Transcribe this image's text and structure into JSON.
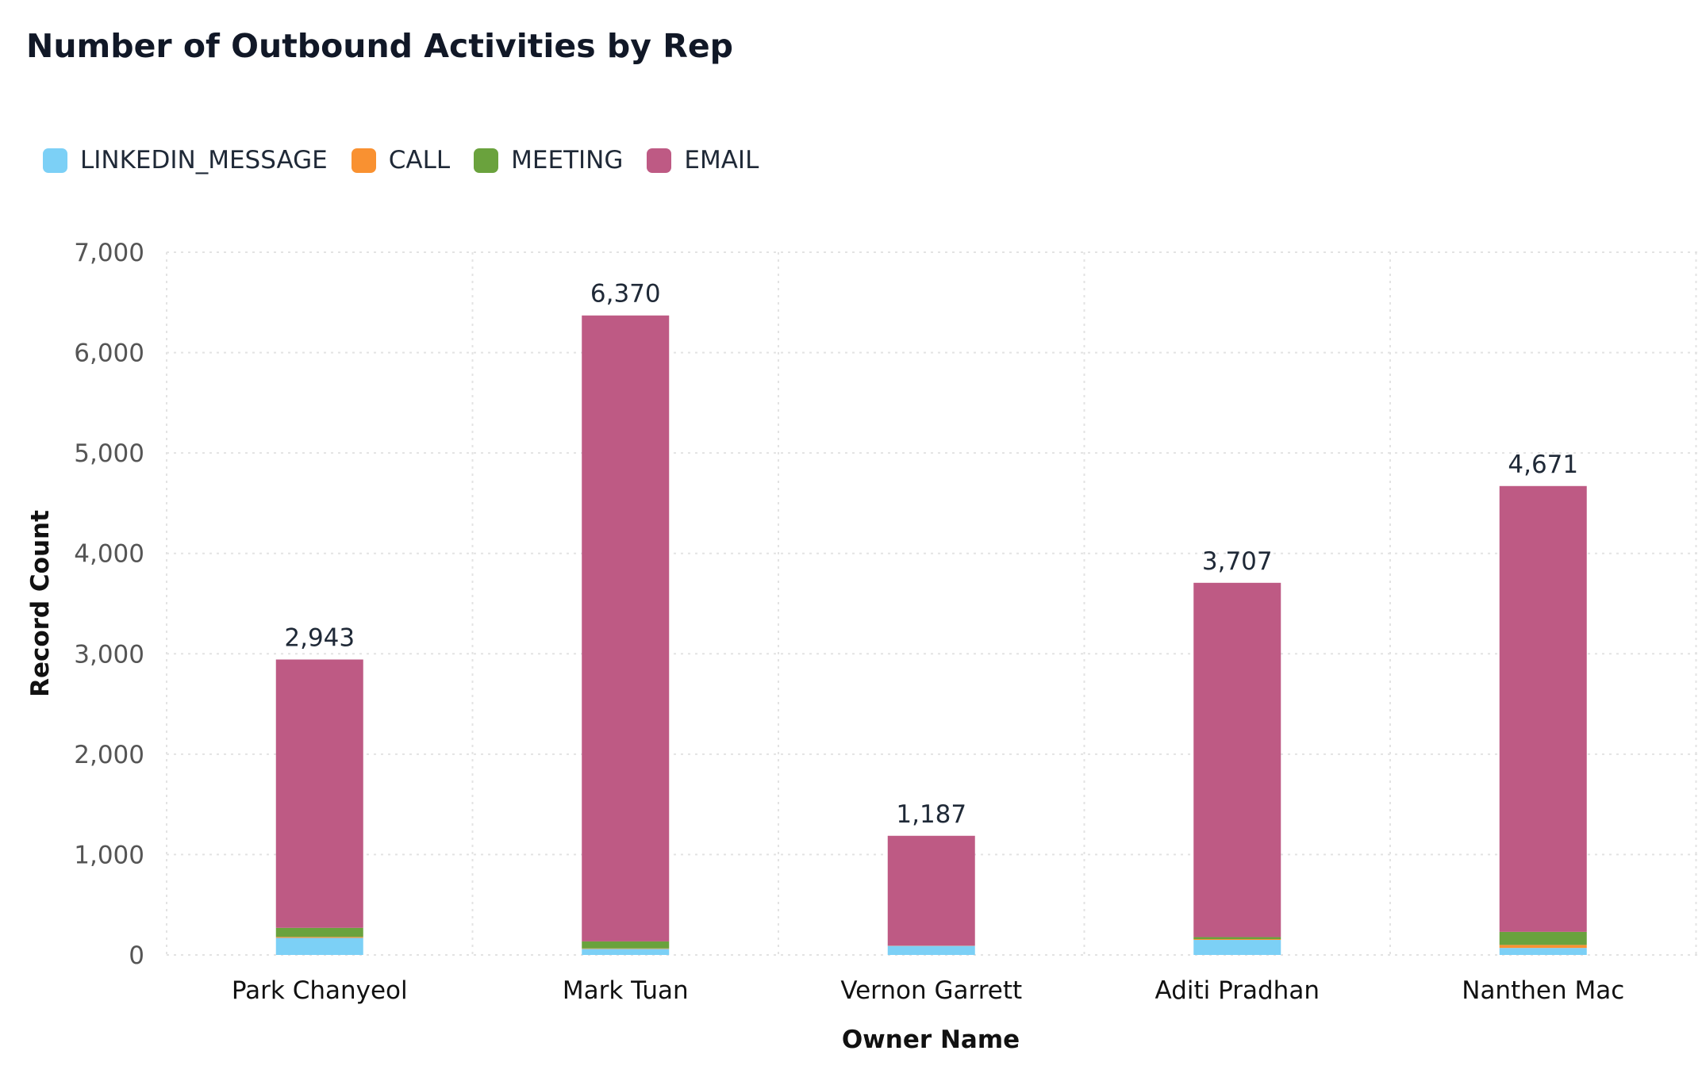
{
  "chart_data": {
    "type": "bar",
    "stacked": true,
    "title": "Number of Outbound Activities by Rep",
    "xlabel": "Owner Name",
    "ylabel": "Record Count",
    "ylim": [
      0,
      7000
    ],
    "yticks": [
      0,
      1000,
      2000,
      3000,
      4000,
      5000,
      6000,
      7000
    ],
    "ytick_labels": [
      "0",
      "1,000",
      "2,000",
      "3,000",
      "4,000",
      "5,000",
      "6,000",
      "7,000"
    ],
    "grid": true,
    "legend_position": "top-left",
    "categories": [
      "Park Chanyeol",
      "Mark Tuan",
      "Vernon Garrett",
      "Aditi Pradhan",
      "Nanthen Mac"
    ],
    "series": [
      {
        "name": "LINKEDIN_MESSAGE",
        "color": "#7cd0f6",
        "values": [
          170,
          60,
          90,
          150,
          70
        ]
      },
      {
        "name": "CALL",
        "color": "#f99131",
        "values": [
          10,
          5,
          2,
          8,
          30
        ]
      },
      {
        "name": "MEETING",
        "color": "#6aa23d",
        "values": [
          90,
          70,
          0,
          20,
          130
        ]
      },
      {
        "name": "EMAIL",
        "color": "#be5a84",
        "values": [
          2673,
          6235,
          1095,
          3529,
          4441
        ]
      }
    ],
    "totals": [
      2943,
      6370,
      1187,
      3707,
      4671
    ],
    "total_labels": [
      "2,943",
      "6,370",
      "1,187",
      "3,707",
      "4,671"
    ]
  }
}
